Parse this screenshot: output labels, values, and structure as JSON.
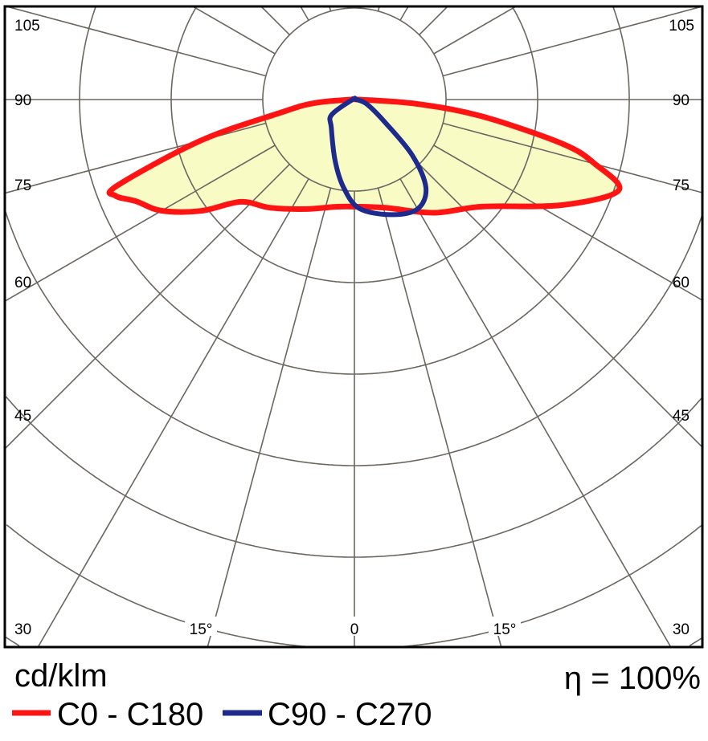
{
  "chart_data": {
    "type": "polar",
    "unit_label": "cd/klm",
    "efficiency_label": "η = 100%",
    "angle_labels": {
      "left": [
        "105",
        "90",
        "75",
        "60",
        "45",
        "30"
      ],
      "right": [
        "105",
        "90",
        "75",
        "60",
        "45",
        "30"
      ],
      "bottom": [
        "15°",
        "0",
        "15°"
      ]
    },
    "angle_grid_step_deg": 15,
    "grid": true,
    "fill_color": "#f9fbc5",
    "series": [
      {
        "name": "C0 - C180",
        "color": "#ff1414",
        "filled": true,
        "points": [
          [
            -90,
            4
          ],
          [
            -85,
            44
          ],
          [
            -80,
            81
          ],
          [
            -75,
            174
          ],
          [
            -70,
            276
          ],
          [
            -68,
            281
          ],
          [
            -65,
            263
          ],
          [
            -60,
            243
          ],
          [
            -54,
            207
          ],
          [
            -48,
            167
          ],
          [
            -38,
            150
          ],
          [
            -24,
            131
          ],
          [
            -10,
            119
          ],
          [
            0,
            117
          ],
          [
            16,
            123
          ],
          [
            35,
            151
          ],
          [
            50,
            182
          ],
          [
            63,
            254
          ],
          [
            71,
            305
          ],
          [
            75,
            272
          ],
          [
            78,
            232
          ],
          [
            82.5,
            140
          ],
          [
            86,
            69
          ],
          [
            90,
            4
          ]
        ]
      },
      {
        "name": "C90 - C270",
        "color": "#1e2a8c",
        "filled": false,
        "points": [
          [
            -90,
            2
          ],
          [
            -56,
            30
          ],
          [
            -39,
            40
          ],
          [
            -17.5,
            70
          ],
          [
            -7.3,
            96
          ],
          [
            2.5,
            119
          ],
          [
            17.7,
            132
          ],
          [
            30,
            138
          ],
          [
            39,
            124
          ],
          [
            46,
            88
          ],
          [
            53,
            43
          ],
          [
            69,
            15
          ],
          [
            90,
            2
          ]
        ]
      }
    ]
  }
}
